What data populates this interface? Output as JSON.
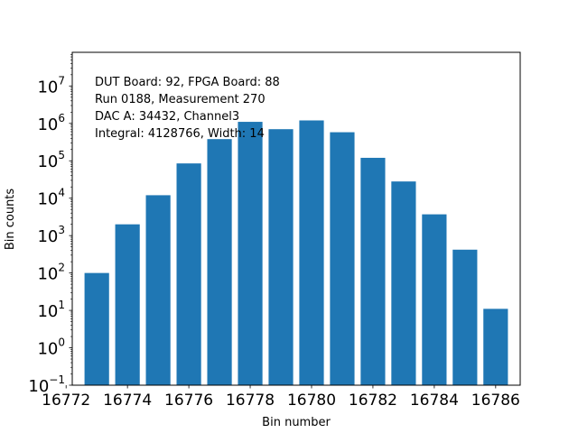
{
  "chart_data": {
    "type": "bar",
    "scale_y": "log",
    "x": [
      16773,
      16774,
      16775,
      16776,
      16777,
      16778,
      16779,
      16780,
      16781,
      16782,
      16783,
      16784,
      16785,
      16786
    ],
    "values": [
      100,
      2000,
      12000,
      85000,
      380000,
      1100000,
      700000,
      1200000,
      580000,
      120000,
      28000,
      3700,
      420,
      11
    ],
    "xlim": [
      16772.2,
      16786.8
    ],
    "ylim_exp": [
      -1,
      7.9
    ],
    "xticks": [
      16772,
      16774,
      16776,
      16778,
      16780,
      16782,
      16784,
      16786
    ],
    "yticks_exp": [
      -1,
      0,
      1,
      2,
      3,
      4,
      5,
      6,
      7
    ],
    "xlabel": "Bin number",
    "ylabel": "Bin counts",
    "bar_color": "#1f77b4",
    "annotations": [
      "DUT Board: 92, FPGA Board: 88",
      "Run 0188, Measurement 270",
      "DAC A: 34432, Channel3",
      "Integral: 4128766, Width: 14"
    ]
  }
}
